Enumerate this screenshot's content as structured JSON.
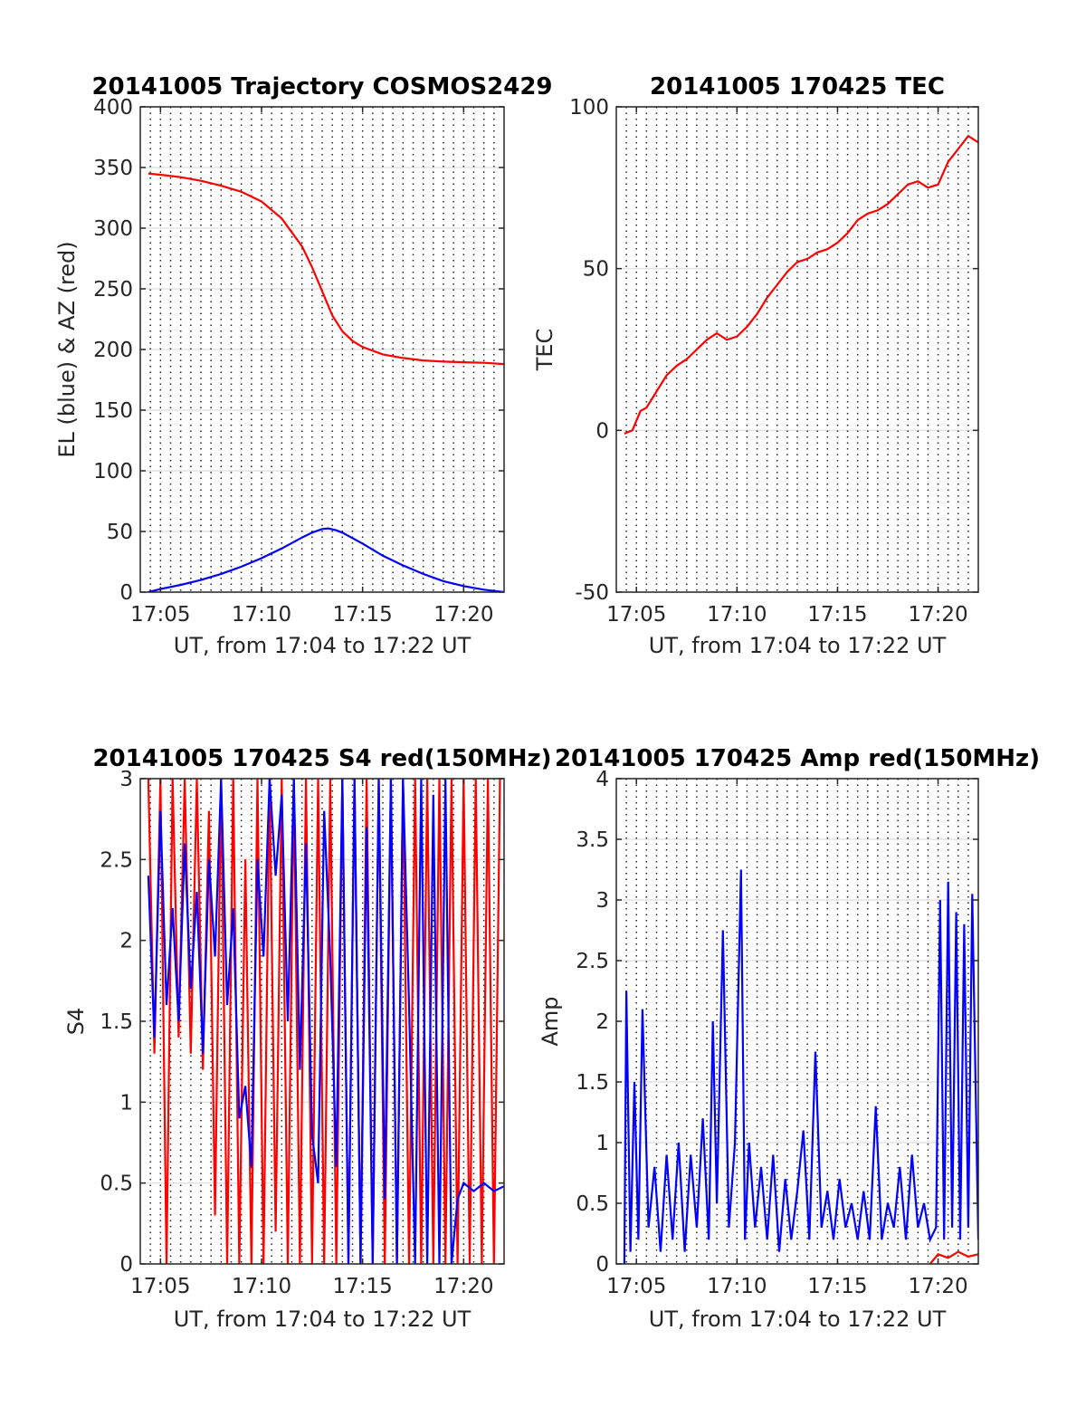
{
  "chart_data": [
    {
      "type": "line",
      "title": "20141005 Trajectory COSMOS2429",
      "xlabel": "UT, from 17:04 to 17:22 UT",
      "ylabel": "EL (blue) & AZ (red)",
      "xlim": [
        4.0,
        22.0
      ],
      "ylim": [
        0,
        400
      ],
      "xticks": [
        5,
        10,
        15,
        20
      ],
      "xtick_labels": [
        "17:05",
        "17:10",
        "17:15",
        "17:20"
      ],
      "yticks": [
        0,
        50,
        100,
        150,
        200,
        250,
        300,
        350,
        400
      ],
      "ytick_labels": [
        "0",
        "50",
        "100",
        "150",
        "200",
        "250",
        "300",
        "350",
        "400"
      ],
      "grid": "horizontal solid, vertical dotted",
      "series": [
        {
          "color": "#ff0000",
          "x": [
            4.4,
            5,
            6,
            7,
            8,
            9,
            10,
            11,
            12,
            12.5,
            13,
            13.5,
            14,
            14.5,
            15,
            16,
            17,
            18,
            19,
            20,
            21,
            22
          ],
          "values": [
            345,
            344,
            342,
            339,
            335,
            330,
            322,
            308,
            285,
            268,
            248,
            228,
            215,
            207,
            202,
            196,
            193,
            191,
            190,
            189.5,
            189,
            188
          ]
        },
        {
          "color": "#0000ff",
          "x": [
            4.4,
            5,
            6,
            7,
            8,
            9,
            10,
            11,
            12,
            12.5,
            13,
            13.3,
            13.7,
            14,
            15,
            16,
            17,
            18,
            19,
            20,
            21,
            22
          ],
          "values": [
            0,
            2.5,
            6,
            10,
            15,
            21,
            28,
            36,
            45,
            49,
            52,
            52.5,
            51,
            49,
            40,
            30,
            22,
            15,
            9,
            5,
            2,
            0
          ]
        }
      ]
    },
    {
      "type": "line",
      "title": "20141005 170425 TEC",
      "xlabel": "UT, from 17:04 to 17:22 UT",
      "ylabel": "TEC",
      "xlim": [
        4.0,
        22.0
      ],
      "ylim": [
        -50,
        100
      ],
      "xticks": [
        5,
        10,
        15,
        20
      ],
      "xtick_labels": [
        "17:05",
        "17:10",
        "17:15",
        "17:20"
      ],
      "yticks": [
        -50,
        0,
        50,
        100
      ],
      "ytick_labels": [
        "-50",
        "0",
        "50",
        "100"
      ],
      "grid": "horizontal solid, vertical dotted",
      "series": [
        {
          "color": "#ff0000",
          "x": [
            4.4,
            4.8,
            5.2,
            5.5,
            6.0,
            6.5,
            7.0,
            7.5,
            8.0,
            8.5,
            9.0,
            9.5,
            10.0,
            10.5,
            11.0,
            11.5,
            12.0,
            12.5,
            13.0,
            13.5,
            14.0,
            14.5,
            15.0,
            15.5,
            16.0,
            16.5,
            17.0,
            17.5,
            18.0,
            18.5,
            19.0,
            19.5,
            20.0,
            20.5,
            21.0,
            21.5,
            22.0
          ],
          "values": [
            -1,
            0,
            6,
            7,
            12,
            17,
            20,
            22,
            25,
            28,
            30,
            28,
            29,
            32,
            36,
            41,
            45,
            49,
            52,
            53,
            55,
            56,
            58,
            61,
            65,
            67,
            68,
            70,
            73,
            76,
            77,
            75,
            76,
            83,
            87,
            91,
            89
          ]
        }
      ]
    },
    {
      "type": "line",
      "title": "20141005 170425 S4 red(150MHz)",
      "xlabel": "UT, from 17:04 to 17:22 UT",
      "ylabel": "S4",
      "xlim": [
        4.0,
        22.0
      ],
      "ylim": [
        0,
        3
      ],
      "xticks": [
        5,
        10,
        15,
        20
      ],
      "xtick_labels": [
        "17:05",
        "17:10",
        "17:15",
        "17:20"
      ],
      "yticks": [
        0,
        0.5,
        1,
        1.5,
        2,
        2.5,
        3
      ],
      "ytick_labels": [
        "0",
        "0.5",
        "1",
        "1.5",
        "2",
        "2.5",
        "3"
      ],
      "grid": "horizontal solid, vertical dotted",
      "series": [
        {
          "color": "#ff0000",
          "x": [
            4.4,
            4.7,
            5.0,
            5.3,
            5.6,
            5.9,
            6.2,
            6.5,
            6.8,
            7.1,
            7.4,
            7.7,
            8.0,
            8.3,
            8.6,
            8.9,
            9.2,
            9.5,
            9.8,
            10.1,
            10.4,
            10.7,
            11.0,
            11.3,
            11.6,
            11.9,
            12.2,
            12.5,
            12.8,
            13.1,
            13.4,
            13.7,
            14.0,
            14.3,
            14.6,
            14.9,
            15.2,
            15.5,
            15.8,
            16.1,
            16.4,
            16.7,
            17.0,
            17.3,
            17.6,
            17.9,
            18.2,
            18.5,
            18.8,
            19.1,
            19.4,
            19.7,
            20.0,
            20.3,
            20.6,
            20.9,
            21.2,
            21.5,
            21.8
          ],
          "values": [
            3,
            1.3,
            3,
            0,
            3,
            1.4,
            3,
            1.3,
            3,
            1.2,
            2.8,
            0.3,
            3,
            0,
            3,
            0,
            2.5,
            0,
            3,
            0,
            3,
            0.2,
            3,
            0,
            3,
            0,
            3,
            0,
            3,
            0,
            3,
            0,
            3,
            0,
            3,
            0,
            3,
            0,
            3,
            0,
            3,
            0,
            3,
            0,
            3,
            0,
            3,
            0,
            3,
            0,
            3,
            0,
            3,
            0,
            3,
            0,
            3,
            0,
            3
          ]
        },
        {
          "color": "#0000ff",
          "x": [
            4.4,
            4.7,
            5.0,
            5.3,
            5.6,
            5.9,
            6.2,
            6.5,
            6.8,
            7.1,
            7.4,
            7.7,
            8.0,
            8.3,
            8.6,
            8.9,
            9.2,
            9.5,
            9.8,
            10.1,
            10.4,
            10.7,
            11.0,
            11.3,
            11.6,
            11.9,
            12.2,
            12.5,
            12.8,
            13.1,
            13.4,
            13.7,
            14.0,
            14.3,
            14.6,
            14.9,
            15.2,
            15.5,
            15.8,
            16.1,
            16.4,
            16.7,
            17.0,
            17.3,
            17.6,
            17.9,
            18.2,
            18.5,
            18.8,
            19.1,
            19.4,
            19.7,
            20.0,
            20.5,
            21.0,
            21.5,
            22.0
          ],
          "values": [
            2.4,
            1.4,
            2.8,
            1.6,
            2.2,
            1.5,
            2.6,
            1.7,
            2.3,
            1.3,
            2.5,
            1.9,
            3,
            1.6,
            2.2,
            0.9,
            1.1,
            0.6,
            2.5,
            1.9,
            3,
            2.4,
            2.9,
            1.5,
            3,
            1.2,
            2.6,
            0.8,
            0.5,
            2.8,
            1.9,
            0.6,
            3,
            0,
            3,
            0,
            2.7,
            0,
            3,
            0.4,
            3,
            0,
            3,
            1.6,
            0,
            3,
            0,
            2.9,
            0,
            3,
            0,
            0.4,
            0.5,
            0.45,
            0.5,
            0.45,
            0.48
          ]
        }
      ]
    },
    {
      "type": "line",
      "title": "20141005 170425 Amp red(150MHz)",
      "xlabel": "UT, from 17:04 to 17:22 UT",
      "ylabel": "Amp",
      "xlim": [
        4.0,
        22.0
      ],
      "ylim": [
        0,
        4
      ],
      "xticks": [
        5,
        10,
        15,
        20
      ],
      "xtick_labels": [
        "17:05",
        "17:10",
        "17:15",
        "17:20"
      ],
      "yticks": [
        0,
        0.5,
        1,
        1.5,
        2,
        2.5,
        3,
        3.5,
        4
      ],
      "ytick_labels": [
        "0",
        "0.5",
        "1",
        "1.5",
        "2",
        "2.5",
        "3",
        "3.5",
        "4"
      ],
      "grid": "horizontal solid, vertical dotted",
      "series": [
        {
          "color": "#0000ff",
          "x": [
            4.4,
            4.5,
            4.7,
            4.9,
            5.1,
            5.3,
            5.6,
            5.9,
            6.2,
            6.5,
            6.8,
            7.1,
            7.4,
            7.7,
            8.0,
            8.3,
            8.6,
            8.8,
            9.0,
            9.3,
            9.6,
            9.9,
            10.2,
            10.4,
            10.6,
            10.9,
            11.2,
            11.5,
            11.8,
            12.1,
            12.4,
            12.7,
            13.0,
            13.3,
            13.6,
            13.9,
            14.2,
            14.5,
            14.8,
            15.1,
            15.4,
            15.7,
            16.0,
            16.3,
            16.6,
            16.9,
            17.2,
            17.5,
            17.8,
            18.1,
            18.4,
            18.7,
            19.0,
            19.3,
            19.6,
            19.9,
            20.1,
            20.3,
            20.5,
            20.7,
            20.9,
            21.1,
            21.3,
            21.5,
            21.7,
            22.0
          ],
          "values": [
            0,
            2.25,
            0.1,
            1.5,
            0.2,
            2.1,
            0.3,
            0.8,
            0.1,
            0.9,
            0.2,
            1.0,
            0.1,
            0.9,
            0.3,
            1.2,
            0.2,
            2.0,
            0.5,
            2.75,
            0.3,
            1.0,
            3.25,
            0.2,
            1.0,
            0.3,
            0.8,
            0.2,
            0.9,
            0.1,
            0.7,
            0.2,
            0.6,
            1.1,
            0.2,
            1.75,
            0.3,
            0.6,
            0.2,
            0.7,
            0.3,
            0.5,
            0.2,
            0.6,
            0.2,
            1.3,
            0.2,
            0.5,
            0.3,
            0.8,
            0.2,
            0.9,
            0.3,
            0.5,
            0.2,
            0.3,
            3.0,
            0.2,
            3.15,
            0.3,
            2.9,
            0.2,
            2.8,
            0.3,
            3.05,
            0.2
          ]
        },
        {
          "color": "#ff0000",
          "x": [
            19.6,
            20.0,
            20.5,
            21.0,
            21.5,
            22.0
          ],
          "values": [
            0,
            0.08,
            0.05,
            0.1,
            0.06,
            0.08
          ]
        }
      ]
    }
  ]
}
